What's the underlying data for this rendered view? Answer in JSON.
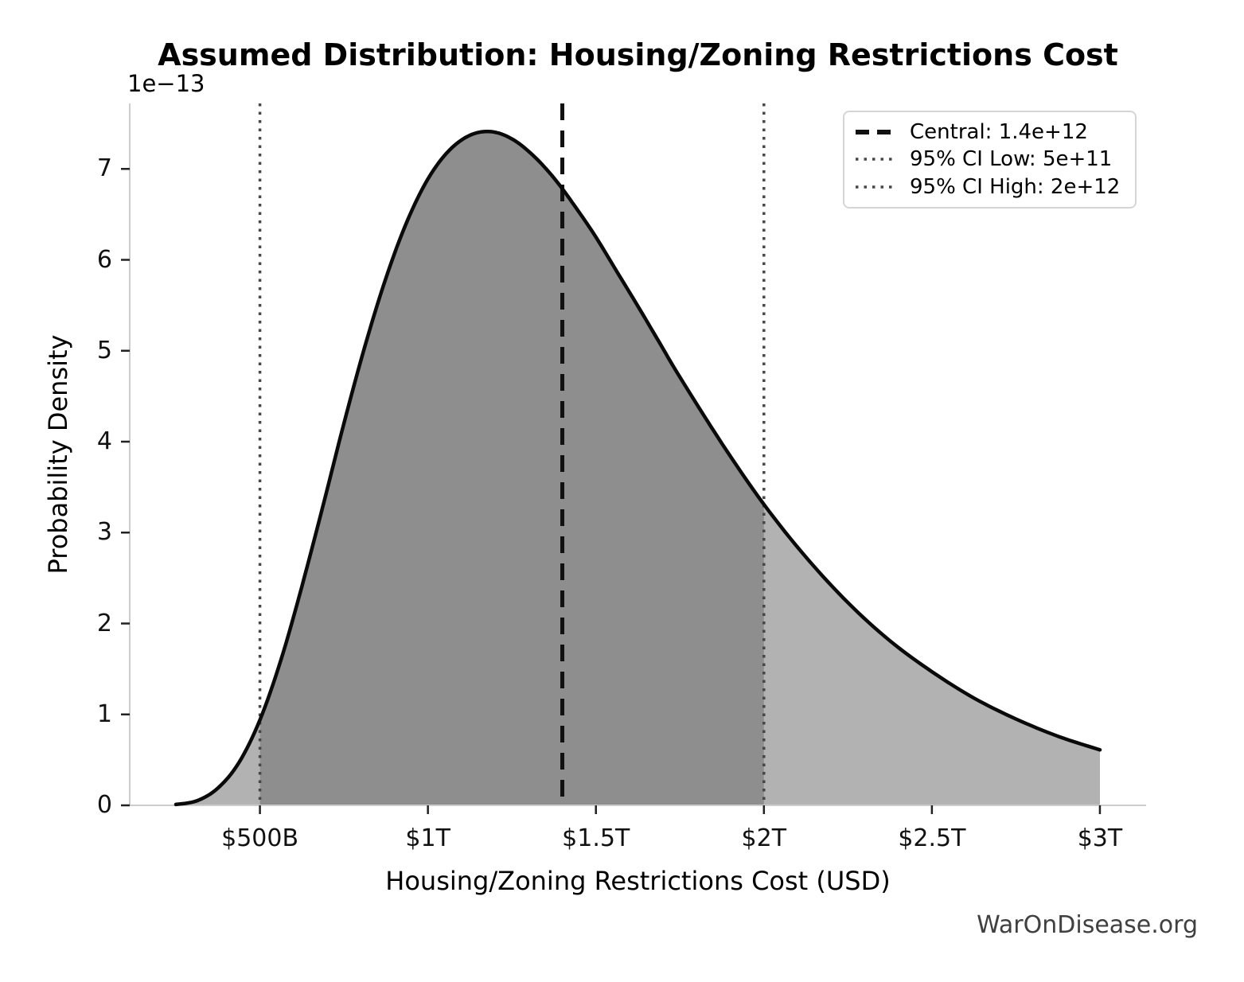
{
  "chart_data": {
    "type": "area",
    "title": "Assumed Distribution: Housing/Zoning Restrictions Cost",
    "xlabel": "Housing/Zoning Restrictions Cost (USD)",
    "ylabel": "Probability Density",
    "y_offset_text": "1e−13",
    "x_unit": "trillions USD",
    "y_unit": "1e-13 per USD",
    "grid": false,
    "legend_position": "upper right",
    "xlim": [
      0.1125,
      3.1375
    ],
    "ylim": [
      0,
      7.72
    ],
    "x_ticks": [
      {
        "value": 0.5,
        "label": "$500B"
      },
      {
        "value": 1.0,
        "label": "$1T"
      },
      {
        "value": 1.5,
        "label": "$1.5T"
      },
      {
        "value": 2.0,
        "label": "$2T"
      },
      {
        "value": 2.5,
        "label": "$2.5T"
      },
      {
        "value": 3.0,
        "label": "$3T"
      }
    ],
    "y_ticks": [
      {
        "value": 0,
        "label": "0"
      },
      {
        "value": 1,
        "label": "1"
      },
      {
        "value": 2,
        "label": "2"
      },
      {
        "value": 3,
        "label": "3"
      },
      {
        "value": 4,
        "label": "4"
      },
      {
        "value": 5,
        "label": "5"
      },
      {
        "value": 6,
        "label": "6"
      },
      {
        "value": 7,
        "label": "7"
      }
    ],
    "curve": {
      "x": [
        0.25,
        0.3125,
        0.375,
        0.4375,
        0.5,
        0.5625,
        0.625,
        0.6875,
        0.75,
        0.8125,
        0.875,
        0.9375,
        1.0,
        1.0625,
        1.125,
        1.1875,
        1.25,
        1.3125,
        1.375,
        1.4375,
        1.5,
        1.5625,
        1.625,
        1.6875,
        1.75,
        1.875,
        2.0,
        2.125,
        2.25,
        2.375,
        2.5,
        2.625,
        2.75,
        2.875,
        3.0
      ],
      "y": [
        0.01,
        0.05,
        0.19,
        0.47,
        0.94,
        1.6,
        2.41,
        3.29,
        4.2,
        5.05,
        5.8,
        6.42,
        6.89,
        7.2,
        7.37,
        7.41,
        7.33,
        7.15,
        6.9,
        6.59,
        6.25,
        5.87,
        5.49,
        5.1,
        4.71,
        3.98,
        3.31,
        2.73,
        2.23,
        1.81,
        1.47,
        1.18,
        0.95,
        0.76,
        0.61
      ]
    },
    "fills": {
      "outer_range": [
        0.25,
        3.0
      ],
      "inner_range": [
        0.5,
        2.0
      ]
    },
    "vlines": [
      {
        "name": "ci-low",
        "value": 0.5,
        "style": "dotted",
        "label_value": "5e+11"
      },
      {
        "name": "ci-high",
        "value": 2.0,
        "style": "dotted",
        "label_value": "2e+12"
      },
      {
        "name": "central",
        "value": 1.4,
        "style": "dashed",
        "label_value": "1.4e+12"
      }
    ],
    "legend": {
      "items": [
        {
          "label": "Central: 1.4e+12",
          "line_style": "dashed",
          "color": "#111111"
        },
        {
          "label": "95% CI Low: 5e+11",
          "line_style": "dotted",
          "color": "#474747"
        },
        {
          "label": "95% CI High: 2e+12",
          "line_style": "dotted",
          "color": "#474747"
        }
      ]
    },
    "watermark": "WarOnDisease.org",
    "colors": {
      "curve": "#0a0a0a",
      "fill_outer": "#b2b2b2",
      "fill_inner": "#8e8e8e",
      "central_line": "#111111",
      "ci_line": "#474747",
      "spine": "#cccccc",
      "tick": "#222222",
      "text": "#000000",
      "watermark": "#404040",
      "legend_border": "#d5d5d5"
    }
  }
}
